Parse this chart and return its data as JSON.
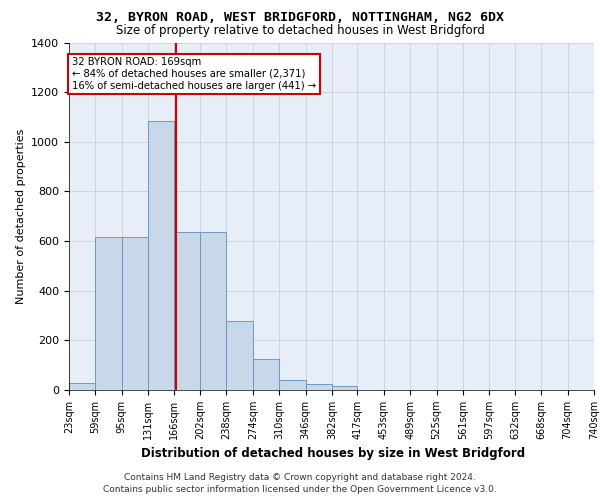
{
  "title_line1": "32, BYRON ROAD, WEST BRIDGFORD, NOTTINGHAM, NG2 6DX",
  "title_line2": "Size of property relative to detached houses in West Bridgford",
  "xlabel": "Distribution of detached houses by size in West Bridgford",
  "ylabel": "Number of detached properties",
  "footer_line1": "Contains HM Land Registry data © Crown copyright and database right 2024.",
  "footer_line2": "Contains public sector information licensed under the Open Government Licence v3.0.",
  "annotation_line1": "32 BYRON ROAD: 169sqm",
  "annotation_line2": "← 84% of detached houses are smaller (2,371)",
  "annotation_line3": "16% of semi-detached houses are larger (441) →",
  "property_size": 169,
  "bin_edges": [
    23,
    59,
    95,
    131,
    166,
    202,
    238,
    274,
    310,
    346,
    382,
    417,
    453,
    489,
    525,
    561,
    597,
    632,
    668,
    704,
    740
  ],
  "bin_counts": [
    30,
    615,
    615,
    1085,
    635,
    635,
    280,
    125,
    42,
    25,
    15,
    0,
    0,
    0,
    0,
    0,
    0,
    0,
    0,
    0
  ],
  "bar_color": "#c8d8e8",
  "bar_edge_color": "#6699cc",
  "vline_color": "#cc0000",
  "vline_x": 169,
  "annotation_box_color": "#cc0000",
  "ylim": [
    0,
    1400
  ],
  "yticks": [
    0,
    200,
    400,
    600,
    800,
    1000,
    1200,
    1400
  ],
  "grid_color": "#c8c8d8",
  "bg_color": "#e8eef8",
  "title_fontsize": 9.5,
  "subtitle_fontsize": 8.5,
  "axis_label_fontsize": 8,
  "tick_fontsize": 7,
  "footer_fontsize": 6.5
}
